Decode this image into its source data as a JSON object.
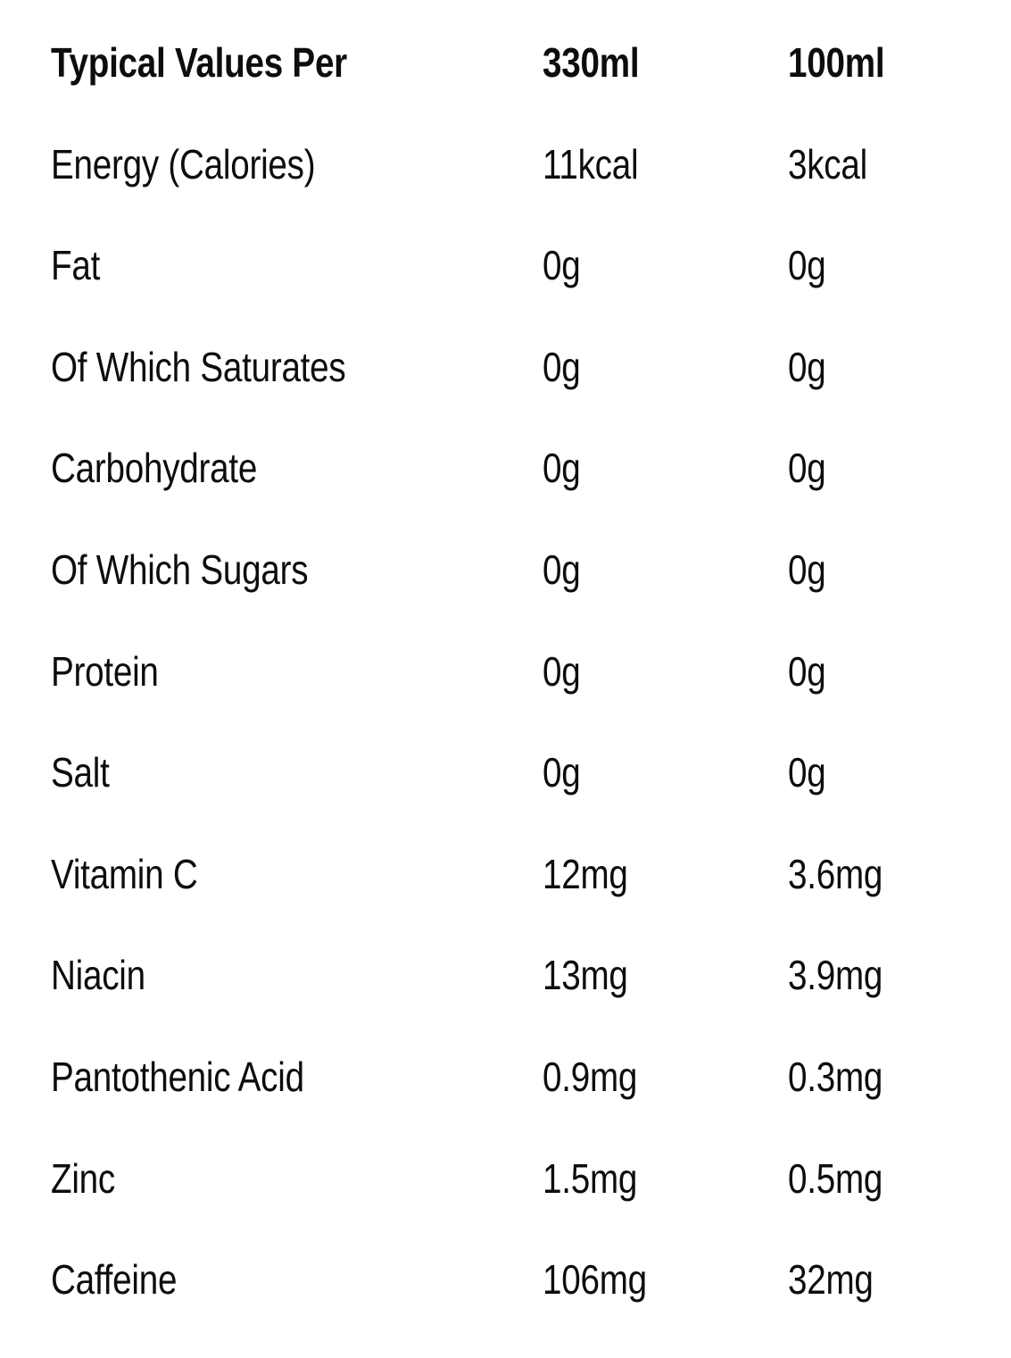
{
  "colors": {
    "background": "#ffffff",
    "text": "#0d0d0d"
  },
  "table": {
    "header": {
      "label": "Typical Values Per",
      "col_330ml": "330ml",
      "col_100ml": "100ml"
    },
    "rows": [
      {
        "label": "Energy (Calories)",
        "per_330ml": "11kcal",
        "per_100ml": "3kcal"
      },
      {
        "label": "Fat",
        "per_330ml": "0g",
        "per_100ml": "0g"
      },
      {
        "label": "Of Which Saturates",
        "per_330ml": "0g",
        "per_100ml": "0g"
      },
      {
        "label": "Carbohydrate",
        "per_330ml": "0g",
        "per_100ml": "0g"
      },
      {
        "label": "Of Which Sugars",
        "per_330ml": "0g",
        "per_100ml": "0g"
      },
      {
        "label": "Protein",
        "per_330ml": "0g",
        "per_100ml": "0g"
      },
      {
        "label": "Salt",
        "per_330ml": "0g",
        "per_100ml": "0g"
      },
      {
        "label": "Vitamin C",
        "per_330ml": "12mg",
        "per_100ml": "3.6mg"
      },
      {
        "label": "Niacin",
        "per_330ml": "13mg",
        "per_100ml": "3.9mg"
      },
      {
        "label": "Pantothenic Acid",
        "per_330ml": "0.9mg",
        "per_100ml": "0.3mg"
      },
      {
        "label": "Zinc",
        "per_330ml": "1.5mg",
        "per_100ml": "0.5mg"
      },
      {
        "label": "Caffeine",
        "per_330ml": "106mg",
        "per_100ml": "32mg"
      }
    ]
  }
}
